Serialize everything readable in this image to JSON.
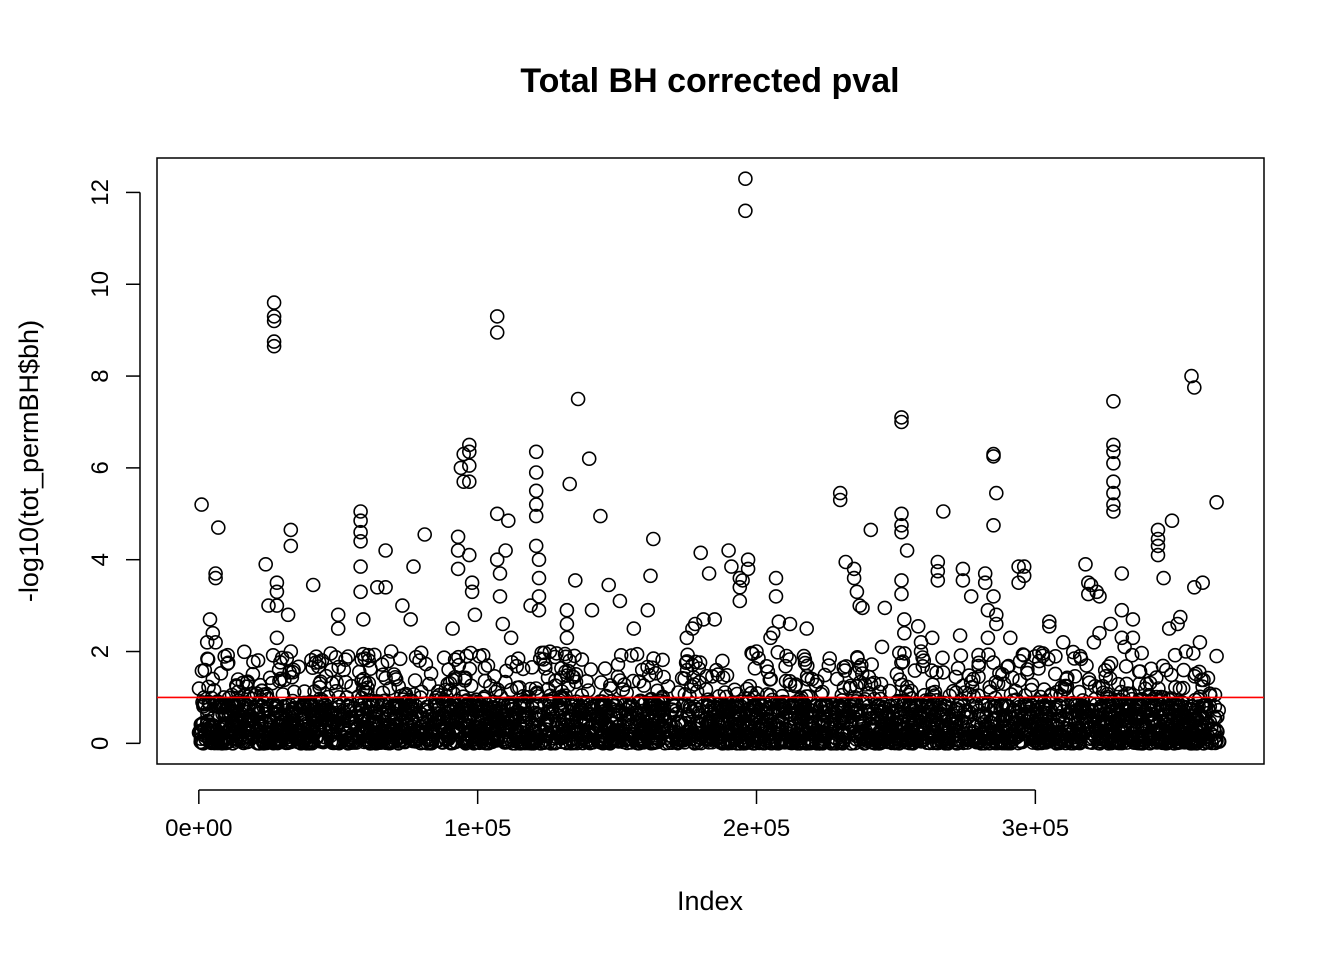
{
  "chart_data": {
    "type": "scatter",
    "title": "Total BH corrected pval",
    "xlabel": "Index",
    "ylabel": "-log10(tot_permBH$bh)",
    "xlim": [
      -15000,
      382000
    ],
    "ylim": [
      -0.45,
      12.75
    ],
    "x_ticks": [
      0,
      100000,
      200000,
      300000
    ],
    "x_tick_labels": [
      "0e+00",
      "1e+05",
      "2e+05",
      "3e+05"
    ],
    "y_ticks": [
      0,
      2,
      4,
      6,
      8,
      10,
      12
    ],
    "y_tick_labels": [
      "0",
      "2",
      "4",
      "6",
      "8",
      "10",
      "12"
    ],
    "marker": "open-circle",
    "marker_color": "#000000",
    "x_max_index": 366000,
    "hline": {
      "y": 1.0,
      "color": "#ff0000"
    },
    "dense_band": {
      "x_range": [
        0,
        366000
      ],
      "y_range": [
        0,
        0.8
      ]
    },
    "points": [
      [
        1000,
        5.2
      ],
      [
        4000,
        2.7
      ],
      [
        5000,
        2.4
      ],
      [
        6000,
        2.2
      ],
      [
        6000,
        3.7
      ],
      [
        6000,
        3.6
      ],
      [
        7000,
        4.7
      ],
      [
        5000,
        1.4
      ],
      [
        3000,
        2.2
      ],
      [
        24000,
        3.9
      ],
      [
        25000,
        3.0
      ],
      [
        27000,
        9.6
      ],
      [
        27000,
        9.3
      ],
      [
        27000,
        9.2
      ],
      [
        27000,
        8.75
      ],
      [
        27000,
        8.65
      ],
      [
        28000,
        3.5
      ],
      [
        28000,
        3.3
      ],
      [
        28000,
        3.0
      ],
      [
        28000,
        2.3
      ],
      [
        32000,
        2.8
      ],
      [
        33000,
        4.65
      ],
      [
        33000,
        4.3
      ],
      [
        33000,
        2.0
      ],
      [
        34000,
        1.6
      ],
      [
        41000,
        3.45
      ],
      [
        50000,
        2.8
      ],
      [
        50000,
        2.5
      ],
      [
        52000,
        1.6
      ],
      [
        58000,
        5.05
      ],
      [
        58000,
        4.85
      ],
      [
        58000,
        4.6
      ],
      [
        58000,
        4.4
      ],
      [
        58000,
        3.85
      ],
      [
        58000,
        3.3
      ],
      [
        59000,
        2.7
      ],
      [
        64000,
        3.4
      ],
      [
        67000,
        4.2
      ],
      [
        67000,
        3.4
      ],
      [
        73000,
        3.0
      ],
      [
        76000,
        2.7
      ],
      [
        77000,
        3.85
      ],
      [
        81000,
        4.55
      ],
      [
        69000,
        2.0
      ],
      [
        70000,
        1.5
      ],
      [
        93000,
        4.5
      ],
      [
        93000,
        4.2
      ],
      [
        93000,
        3.8
      ],
      [
        94000,
        6.0
      ],
      [
        95000,
        6.3
      ],
      [
        95000,
        5.7
      ],
      [
        97000,
        6.5
      ],
      [
        97000,
        6.35
      ],
      [
        97000,
        6.05
      ],
      [
        97000,
        5.7
      ],
      [
        97000,
        4.1
      ],
      [
        98000,
        3.5
      ],
      [
        98000,
        3.3
      ],
      [
        99000,
        2.8
      ],
      [
        91000,
        2.5
      ],
      [
        96000,
        1.9
      ],
      [
        107000,
        9.3
      ],
      [
        107000,
        8.95
      ],
      [
        107000,
        5.0
      ],
      [
        107000,
        4.0
      ],
      [
        108000,
        3.7
      ],
      [
        108000,
        3.2
      ],
      [
        111000,
        4.85
      ],
      [
        110000,
        4.2
      ],
      [
        109000,
        2.6
      ],
      [
        112000,
        2.3
      ],
      [
        121000,
        6.35
      ],
      [
        121000,
        5.9
      ],
      [
        121000,
        5.5
      ],
      [
        121000,
        5.2
      ],
      [
        121000,
        4.95
      ],
      [
        121000,
        4.3
      ],
      [
        122000,
        4.0
      ],
      [
        122000,
        3.6
      ],
      [
        122000,
        3.2
      ],
      [
        122000,
        2.9
      ],
      [
        119000,
        3.0
      ],
      [
        132000,
        2.9
      ],
      [
        132000,
        2.6
      ],
      [
        132000,
        2.3
      ],
      [
        133000,
        5.65
      ],
      [
        135000,
        3.55
      ],
      [
        136000,
        7.5
      ],
      [
        140000,
        6.2
      ],
      [
        141000,
        2.9
      ],
      [
        144000,
        4.95
      ],
      [
        147000,
        3.45
      ],
      [
        151000,
        3.1
      ],
      [
        156000,
        2.5
      ],
      [
        161000,
        2.9
      ],
      [
        162000,
        3.65
      ],
      [
        163000,
        4.45
      ],
      [
        159000,
        1.6
      ],
      [
        175000,
        2.3
      ],
      [
        177000,
        2.5
      ],
      [
        178000,
        2.6
      ],
      [
        180000,
        4.15
      ],
      [
        181000,
        2.7
      ],
      [
        183000,
        3.7
      ],
      [
        185000,
        2.7
      ],
      [
        190000,
        4.2
      ],
      [
        191000,
        3.85
      ],
      [
        194000,
        3.6
      ],
      [
        194000,
        3.4
      ],
      [
        194000,
        3.1
      ],
      [
        195000,
        3.55
      ],
      [
        196000,
        12.3
      ],
      [
        196000,
        11.6
      ],
      [
        197000,
        4.0
      ],
      [
        197000,
        3.8
      ],
      [
        200000,
        2.0
      ],
      [
        207000,
        3.6
      ],
      [
        207000,
        3.2
      ],
      [
        206000,
        2.4
      ],
      [
        205000,
        2.3
      ],
      [
        208000,
        2.65
      ],
      [
        212000,
        2.6
      ],
      [
        218000,
        2.5
      ],
      [
        217000,
        1.9
      ],
      [
        230000,
        5.45
      ],
      [
        230000,
        5.3
      ],
      [
        232000,
        3.95
      ],
      [
        235000,
        3.8
      ],
      [
        235000,
        3.6
      ],
      [
        236000,
        3.3
      ],
      [
        237000,
        3.0
      ],
      [
        238000,
        2.95
      ],
      [
        241000,
        4.65
      ],
      [
        245000,
        2.1
      ],
      [
        246000,
        2.95
      ],
      [
        252000,
        7.1
      ],
      [
        252000,
        7.0
      ],
      [
        252000,
        5.0
      ],
      [
        252000,
        4.75
      ],
      [
        252000,
        4.6
      ],
      [
        252000,
        3.55
      ],
      [
        252000,
        3.25
      ],
      [
        253000,
        2.7
      ],
      [
        253000,
        2.4
      ],
      [
        254000,
        4.2
      ],
      [
        258000,
        2.55
      ],
      [
        259000,
        2.2
      ],
      [
        259000,
        2.0
      ],
      [
        260000,
        1.8
      ],
      [
        263000,
        2.3
      ],
      [
        265000,
        3.95
      ],
      [
        265000,
        3.75
      ],
      [
        265000,
        3.55
      ],
      [
        267000,
        5.05
      ],
      [
        273000,
        2.35
      ],
      [
        274000,
        3.8
      ],
      [
        274000,
        3.55
      ],
      [
        277000,
        3.2
      ],
      [
        282000,
        3.7
      ],
      [
        282000,
        3.5
      ],
      [
        283000,
        2.9
      ],
      [
        283000,
        2.3
      ],
      [
        285000,
        6.3
      ],
      [
        285000,
        6.25
      ],
      [
        286000,
        5.45
      ],
      [
        285000,
        4.75
      ],
      [
        285000,
        3.2
      ],
      [
        286000,
        2.8
      ],
      [
        286000,
        2.6
      ],
      [
        291000,
        2.3
      ],
      [
        294000,
        3.85
      ],
      [
        294000,
        3.5
      ],
      [
        296000,
        3.85
      ],
      [
        296000,
        3.65
      ],
      [
        305000,
        2.65
      ],
      [
        305000,
        2.55
      ],
      [
        310000,
        2.2
      ],
      [
        318000,
        3.9
      ],
      [
        319000,
        3.5
      ],
      [
        319000,
        3.25
      ],
      [
        320000,
        3.45
      ],
      [
        321000,
        2.2
      ],
      [
        322000,
        3.3
      ],
      [
        323000,
        3.2
      ],
      [
        323000,
        2.4
      ],
      [
        327000,
        2.6
      ],
      [
        328000,
        7.45
      ],
      [
        328000,
        6.5
      ],
      [
        328000,
        6.35
      ],
      [
        328000,
        6.1
      ],
      [
        328000,
        5.7
      ],
      [
        328000,
        5.45
      ],
      [
        328000,
        5.2
      ],
      [
        328000,
        5.05
      ],
      [
        331000,
        3.7
      ],
      [
        331000,
        2.9
      ],
      [
        331000,
        2.3
      ],
      [
        332000,
        2.1
      ],
      [
        335000,
        2.7
      ],
      [
        335000,
        2.3
      ],
      [
        344000,
        4.65
      ],
      [
        344000,
        4.45
      ],
      [
        344000,
        4.3
      ],
      [
        344000,
        4.1
      ],
      [
        346000,
        3.6
      ],
      [
        348000,
        2.5
      ],
      [
        349000,
        4.85
      ],
      [
        351000,
        2.6
      ],
      [
        352000,
        2.75
      ],
      [
        356000,
        8.0
      ],
      [
        357000,
        7.75
      ],
      [
        357000,
        3.4
      ],
      [
        359000,
        2.2
      ],
      [
        360000,
        3.5
      ],
      [
        365000,
        5.25
      ],
      [
        365000,
        1.9
      ],
      [
        354000,
        2.0
      ]
    ]
  }
}
